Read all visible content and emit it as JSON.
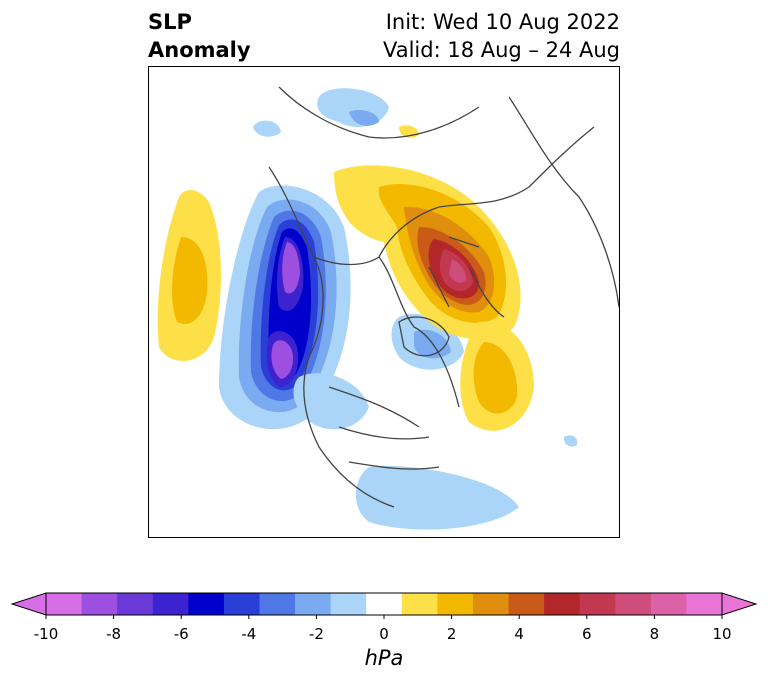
{
  "title": {
    "variable_line1": "SLP",
    "variable_line2": "Anomaly",
    "init": "Init: Wed 10 Aug 2022",
    "valid": "Valid: 18 Aug – 24 Aug"
  },
  "colorbar": {
    "units": "hPa",
    "ticks": [
      "-10",
      "-8",
      "-6",
      "-4",
      "-2",
      "0",
      "2",
      "4",
      "6",
      "8",
      "10"
    ],
    "levels": [
      -10,
      -9,
      -8,
      -7,
      -6,
      -5,
      -4,
      -3,
      -2,
      -1,
      1,
      2,
      3,
      4,
      5,
      6,
      7,
      8,
      9,
      10
    ],
    "colors": [
      "#d66ee6",
      "#9d50e0",
      "#6a3ad8",
      "#3d22cf",
      "#0000cd",
      "#2a3fd8",
      "#4f78e6",
      "#7aaaf0",
      "#aad5f8",
      "#ffffff",
      "#fde047",
      "#f3b800",
      "#df8e0d",
      "#c95a18",
      "#b3262a",
      "#c23850",
      "#cf4d7a",
      "#dc62a8",
      "#e874d6"
    ],
    "extend_low_color": "#d66ee6",
    "extend_high_color": "#e874d6"
  },
  "map": {
    "projection": "north-polar-stereographic",
    "region": "Northern Hemisphere"
  }
}
